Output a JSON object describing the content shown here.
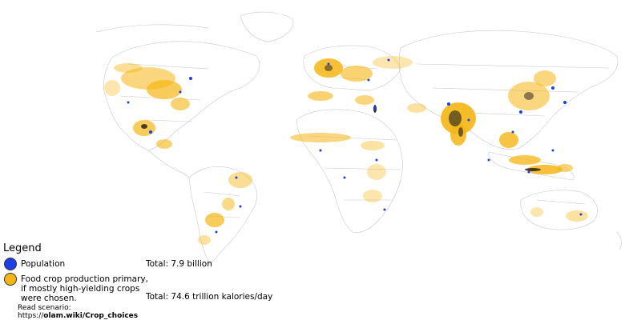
{
  "map": {
    "colors": {
      "population": "#1a3fe6",
      "food_crop": "#f5b614",
      "food_crop_light": "#fbd98a",
      "overlap": "#1a1a1a",
      "borders": "#c8c8c8"
    }
  },
  "legend": {
    "title": "Legend",
    "items": [
      {
        "label": "Population",
        "total": "Total: 7.9 billion",
        "color": "#1a3fe6"
      },
      {
        "label": "Food crop production primary, if mostly high-yielding crops were chosen.",
        "total": "Total: 74.6 trillion kalories/day",
        "color": "#f5b614"
      }
    ],
    "scenario_prefix": "Read scenario:",
    "scenario_url_plain": "https://",
    "scenario_url_bold": "olam.wiki/Crop_choices"
  }
}
